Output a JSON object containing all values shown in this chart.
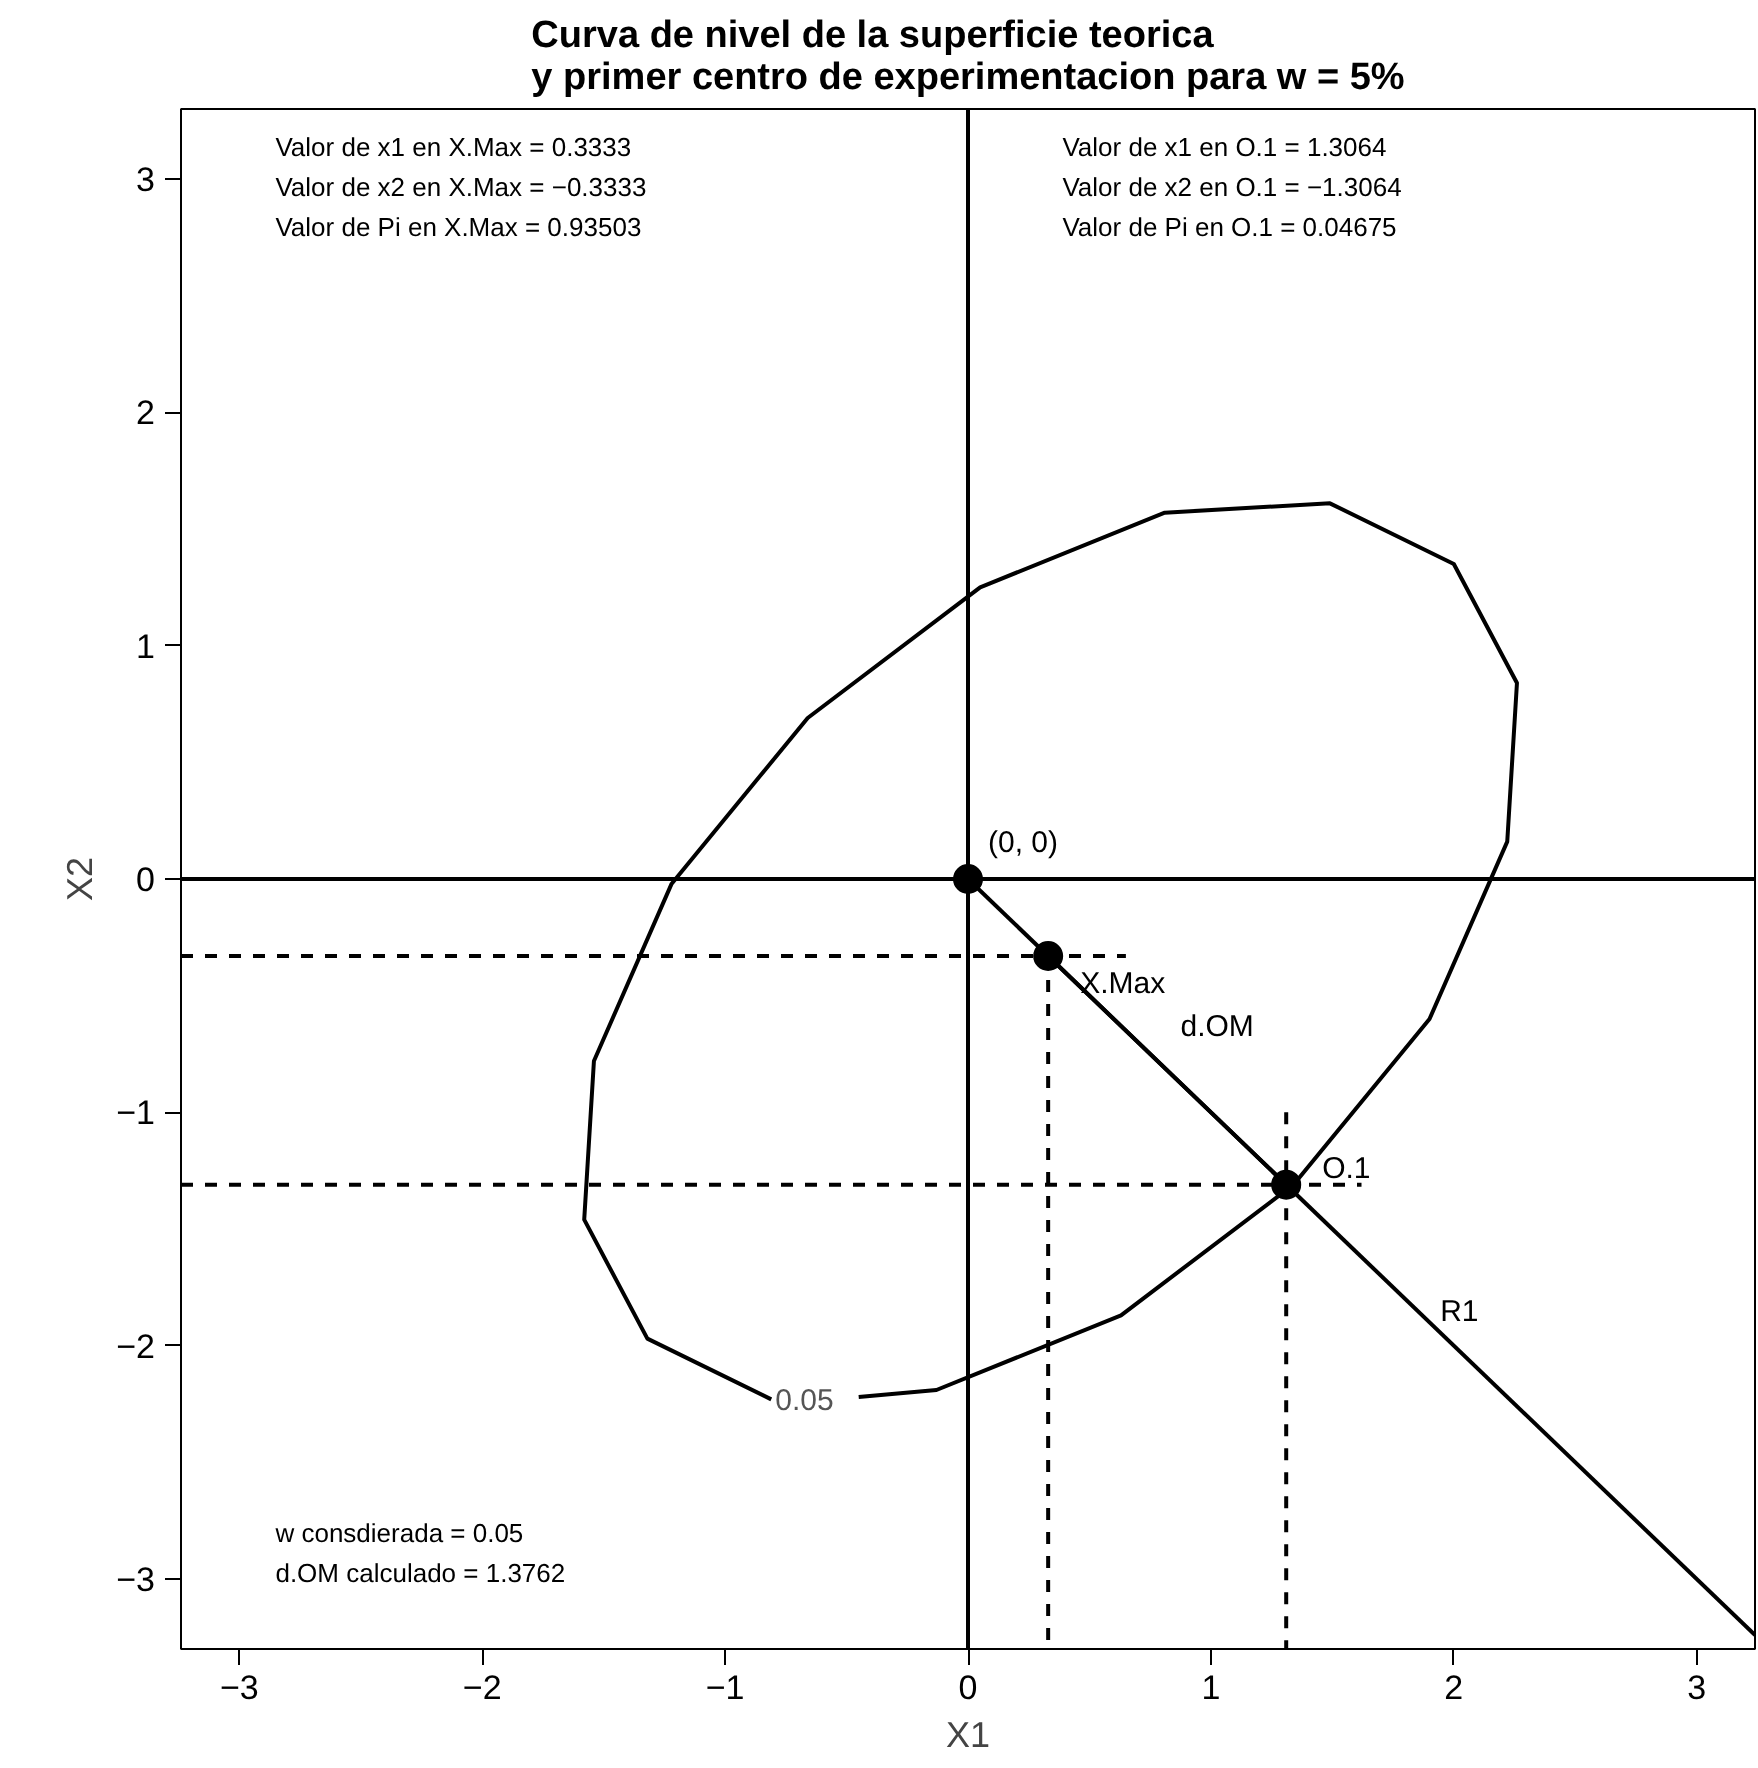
{
  "chart_data": {
    "type": "line",
    "title": "Curva de nivel de la superficie teorica\ny primer centro de experimentacion para w = 5%",
    "xlabel": "X1",
    "ylabel": "X2",
    "xlim": [
      -3.24,
      3.24
    ],
    "ylim": [
      -3.3,
      3.3
    ],
    "xticks": [
      {
        "value": -3,
        "label": "−3"
      },
      {
        "value": -2,
        "label": "−2"
      },
      {
        "value": -1,
        "label": "−1"
      },
      0,
      1,
      2,
      3
    ],
    "yticks": [
      {
        "value": -3,
        "label": "−3"
      },
      {
        "value": -2,
        "label": "−2"
      },
      {
        "value": -1,
        "label": "−1"
      },
      0,
      1,
      2,
      3
    ],
    "grid": false,
    "series": [
      {
        "color": "#000000",
        "line_style": "solid",
        "x": [
          -0.45,
          -0.13,
          0.63,
          1.34,
          1.9,
          2.22,
          2.26,
          2.0,
          1.49,
          0.81,
          0.05,
          -0.66,
          -1.22,
          -1.54,
          -1.58,
          -1.32,
          -0.81
        ],
        "values": [
          -2.22,
          -2.19,
          -1.87,
          -1.31,
          -0.6,
          0.16,
          0.84,
          1.35,
          1.61,
          1.57,
          1.25,
          0.69,
          -0.02,
          -0.78,
          -1.46,
          -1.97,
          -2.23
        ]
      },
      {
        "color": "#000000",
        "line_style": "solid",
        "x": [
          0,
          3.24
        ],
        "values": [
          0,
          -3.24
        ]
      },
      {
        "color": "#000000",
        "line_style": "solid",
        "x": [
          0.33,
          1.31
        ],
        "values": [
          -0.33,
          -1.31
        ]
      },
      {
        "color": "#000000",
        "line_style": "dashed",
        "x": [
          -3.24,
          0.65
        ],
        "values": [
          -0.33,
          -0.33
        ]
      },
      {
        "color": "#000000",
        "line_style": "dashed",
        "x": [
          0.33,
          0.33
        ],
        "values": [
          -0.33,
          -3.3
        ]
      },
      {
        "color": "#000000",
        "line_style": "dashed",
        "x": [
          -3.24,
          1.62
        ],
        "values": [
          -1.31,
          -1.31
        ]
      },
      {
        "color": "#000000",
        "line_style": "dashed",
        "x": [
          1.31,
          1.31
        ],
        "values": [
          -1.0,
          -3.3
        ]
      },
      {
        "color": "#000000",
        "line_style": "solid",
        "x": [
          0,
          0
        ],
        "values": [
          -3.3,
          3.3
        ]
      },
      {
        "color": "#000000",
        "line_style": "solid",
        "x": [
          -3.24,
          3.24
        ],
        "values": [
          0,
          0
        ]
      },
      {
        "type": "scatter",
        "color": "#000000",
        "marker": "circle",
        "x": [
          0,
          0.33,
          1.31
        ],
        "values": [
          0,
          -0.33,
          -1.31
        ]
      }
    ],
    "annotations": [
      "Valor de x1 en X.Max =  0.3333",
      "Valor de x2 en X.Max =  −0.3333",
      "Valor de Pi en X.Max =  0.93503",
      "Valor de x1 en O.1 = 1.3064",
      "Valor de x2 en O.1 = −1.3064",
      "Valor de Pi en O.1 =  0.04675",
      "w consdierada  = 0.05",
      "d.OM calculado = 1.3762",
      "d.OM",
      "R1",
      {
        "text": "(0, 0)",
        "x": 0,
        "y": 0
      },
      {
        "text": "X.Max",
        "x": 0.33,
        "y": -0.33
      },
      {
        "text": "O.1",
        "x": 1.31,
        "y": -1.31
      },
      {
        "text": "0.05",
        "x": -0.81,
        "y": -2.23
      }
    ]
  }
}
